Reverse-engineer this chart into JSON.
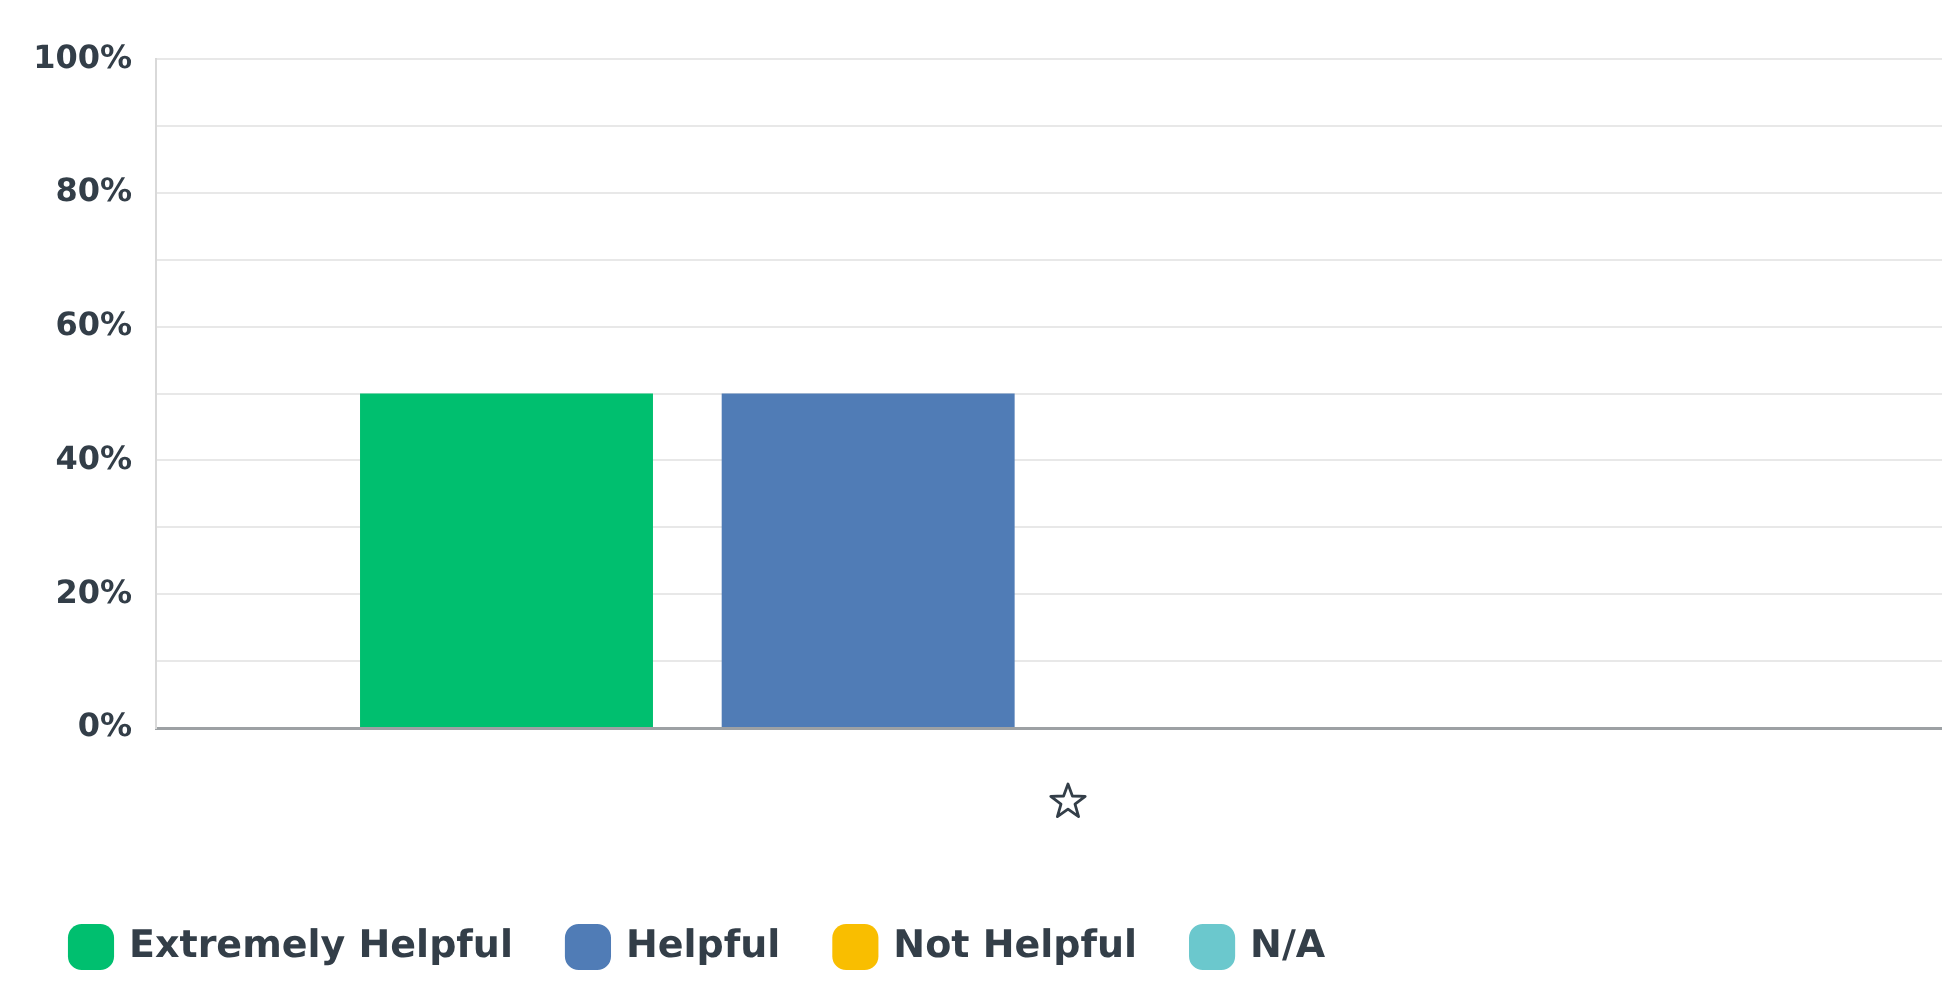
{
  "chart_data": {
    "type": "bar",
    "categories": [
      null
    ],
    "series": [
      {
        "name": "Extremely Helpful",
        "color": "#00bf6f",
        "values": [
          50
        ]
      },
      {
        "name": "Helpful",
        "color": "#507cb6",
        "values": [
          50
        ]
      },
      {
        "name": "Not Helpful",
        "color": "#f9be00",
        "values": [
          0
        ]
      },
      {
        "name": "N/A",
        "color": "#6bc8cd",
        "values": [
          0
        ]
      }
    ],
    "ylim": [
      0,
      100
    ],
    "yticks": [
      {
        "value": 0,
        "label": "0%"
      },
      {
        "value": 10,
        "label": null
      },
      {
        "value": 20,
        "label": "20%"
      },
      {
        "value": 30,
        "label": null
      },
      {
        "value": 40,
        "label": "40%"
      },
      {
        "value": 50,
        "label": null
      },
      {
        "value": 60,
        "label": "60%"
      },
      {
        "value": 70,
        "label": null
      },
      {
        "value": 80,
        "label": "80%"
      },
      {
        "value": 90,
        "label": null
      },
      {
        "value": 100,
        "label": "100%"
      }
    ],
    "grid": "y",
    "legend": "bottom left"
  }
}
